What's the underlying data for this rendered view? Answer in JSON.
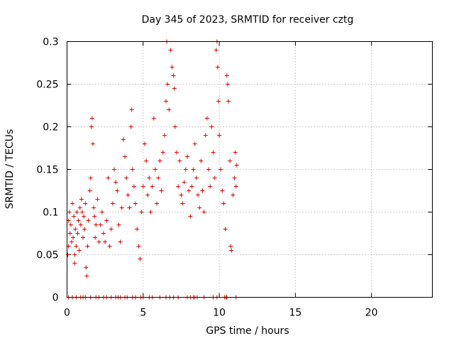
{
  "chart_data": {
    "type": "scatter",
    "title": "Day 345 of 2023, SRMTID for receiver cztg",
    "xlabel": "GPS time / hours",
    "ylabel": "SRMTID / TECUs",
    "xlim": [
      0,
      24
    ],
    "ylim": [
      0,
      0.3
    ],
    "grid": true,
    "marker": "+",
    "series_color": "#e00000",
    "x_ticks": [
      {
        "value": 0,
        "label": "0"
      },
      {
        "value": 5,
        "label": "5"
      },
      {
        "value": 10,
        "label": "10"
      },
      {
        "value": 15,
        "label": "15"
      },
      {
        "value": 20,
        "label": "20"
      }
    ],
    "y_ticks": [
      {
        "value": 0,
        "label": "0"
      },
      {
        "value": 0.05,
        "label": "0.05"
      },
      {
        "value": 0.1,
        "label": "0.1"
      },
      {
        "value": 0.15,
        "label": "0.15"
      },
      {
        "value": 0.2,
        "label": "0.2"
      },
      {
        "value": 0.25,
        "label": "0.25"
      },
      {
        "value": 0.3,
        "label": "0.3"
      }
    ],
    "series": [
      {
        "name": "SRMTID",
        "points": [
          [
            0.05,
            0.05
          ],
          [
            0.1,
            0.09
          ],
          [
            0.1,
            0.06
          ],
          [
            0.15,
            0.1
          ],
          [
            0.2,
            0.075
          ],
          [
            0.25,
            0.085
          ],
          [
            0.3,
            0.065
          ],
          [
            0.35,
            0.11
          ],
          [
            0.4,
            0.07
          ],
          [
            0.45,
            0.095
          ],
          [
            0.5,
            0.05
          ],
          [
            0.5,
            0.04
          ],
          [
            0.55,
            0.08
          ],
          [
            0.6,
            0.06
          ],
          [
            0.65,
            0.1
          ],
          [
            0.7,
            0.075
          ],
          [
            0.75,
            0.09
          ],
          [
            0.8,
            0.055
          ],
          [
            0.85,
            0.105
          ],
          [
            0.9,
            0.085
          ],
          [
            0.95,
            0.115
          ],
          [
            1.0,
            0.1
          ],
          [
            1.05,
            0.07
          ],
          [
            1.1,
            0.095
          ],
          [
            1.15,
            0.08
          ],
          [
            1.2,
            0.11
          ],
          [
            1.25,
            0.035
          ],
          [
            1.3,
            0.025
          ],
          [
            1.35,
            0.06
          ],
          [
            1.4,
            0.09
          ],
          [
            1.5,
            0.125
          ],
          [
            1.55,
            0.14
          ],
          [
            1.6,
            0.2
          ],
          [
            1.65,
            0.21
          ],
          [
            1.7,
            0.18
          ],
          [
            1.75,
            0.105
          ],
          [
            1.8,
            0.095
          ],
          [
            1.85,
            0.07
          ],
          [
            1.9,
            0.085
          ],
          [
            2.0,
            0.115
          ],
          [
            2.1,
            0.065
          ],
          [
            2.2,
            0.085
          ],
          [
            2.3,
            0.1
          ],
          [
            2.4,
            0.075
          ],
          [
            2.5,
            0.065
          ],
          [
            2.6,
            0.09
          ],
          [
            2.7,
            0.14
          ],
          [
            2.8,
            0.06
          ],
          [
            2.9,
            0.08
          ],
          [
            3.0,
            0.11
          ],
          [
            3.1,
            0.15
          ],
          [
            3.2,
            0.135
          ],
          [
            3.3,
            0.125
          ],
          [
            3.4,
            0.085
          ],
          [
            3.5,
            0.065
          ],
          [
            3.6,
            0.105
          ],
          [
            3.7,
            0.185
          ],
          [
            3.8,
            0.165
          ],
          [
            3.9,
            0.14
          ],
          [
            4.0,
            0.12
          ],
          [
            4.1,
            0.105
          ],
          [
            4.2,
            0.2
          ],
          [
            4.25,
            0.22
          ],
          [
            4.3,
            0.15
          ],
          [
            4.4,
            0.13
          ],
          [
            4.5,
            0.11
          ],
          [
            4.6,
            0.08
          ],
          [
            4.7,
            0.06
          ],
          [
            4.8,
            0.045
          ],
          [
            4.9,
            0.1
          ],
          [
            5.0,
            0.13
          ],
          [
            5.1,
            0.18
          ],
          [
            5.2,
            0.16
          ],
          [
            5.3,
            0.12
          ],
          [
            5.4,
            0.14
          ],
          [
            5.5,
            0.1
          ],
          [
            5.6,
            0.13
          ],
          [
            5.7,
            0.21
          ],
          [
            5.8,
            0.15
          ],
          [
            5.9,
            0.11
          ],
          [
            6.0,
            0.14
          ],
          [
            6.1,
            0.16
          ],
          [
            6.2,
            0.125
          ],
          [
            6.3,
            0.17
          ],
          [
            6.4,
            0.19
          ],
          [
            6.5,
            0.23
          ],
          [
            6.55,
            0.3
          ],
          [
            6.6,
            0.25
          ],
          [
            6.7,
            0.22
          ],
          [
            6.8,
            0.29
          ],
          [
            6.9,
            0.27
          ],
          [
            7.0,
            0.26
          ],
          [
            7.05,
            0.245
          ],
          [
            7.1,
            0.2
          ],
          [
            7.2,
            0.17
          ],
          [
            7.3,
            0.13
          ],
          [
            7.4,
            0.16
          ],
          [
            7.5,
            0.12
          ],
          [
            7.6,
            0.11
          ],
          [
            7.7,
            0.135
          ],
          [
            7.8,
            0.15
          ],
          [
            7.9,
            0.165
          ],
          [
            8.0,
            0.125
          ],
          [
            8.1,
            0.095
          ],
          [
            8.2,
            0.13
          ],
          [
            8.3,
            0.15
          ],
          [
            8.4,
            0.18
          ],
          [
            8.5,
            0.14
          ],
          [
            8.6,
            0.12
          ],
          [
            8.7,
            0.105
          ],
          [
            8.8,
            0.16
          ],
          [
            8.9,
            0.125
          ],
          [
            9.0,
            0.1
          ],
          [
            9.1,
            0.19
          ],
          [
            9.2,
            0.21
          ],
          [
            9.3,
            0.15
          ],
          [
            9.4,
            0.13
          ],
          [
            9.5,
            0.2
          ],
          [
            9.6,
            0.17
          ],
          [
            9.7,
            0.14
          ],
          [
            9.8,
            0.29
          ],
          [
            9.85,
            0.3
          ],
          [
            9.9,
            0.27
          ],
          [
            9.95,
            0.23
          ],
          [
            10.0,
            0.19
          ],
          [
            10.1,
            0.15
          ],
          [
            10.2,
            0.125
          ],
          [
            10.3,
            0.11
          ],
          [
            10.4,
            0.08
          ],
          [
            10.5,
            0.26
          ],
          [
            10.55,
            0.25
          ],
          [
            10.6,
            0.23
          ],
          [
            10.7,
            0.16
          ],
          [
            10.75,
            0.06
          ],
          [
            10.8,
            0.055
          ],
          [
            10.9,
            0.12
          ],
          [
            11.0,
            0.14
          ],
          [
            11.05,
            0.17
          ],
          [
            11.1,
            0.13
          ],
          [
            11.15,
            0.155
          ]
        ]
      }
    ],
    "zero_points_x": [
      0.1,
      0.35,
      0.6,
      0.9,
      1.05,
      1.2,
      1.55,
      1.9,
      2.1,
      2.4,
      2.6,
      2.9,
      3.2,
      3.35,
      3.5,
      3.8,
      3.95,
      4.3,
      4.5,
      4.85,
      5.0,
      5.4,
      5.6,
      6.1,
      6.5,
      6.75,
      7.0,
      7.3,
      7.9,
      8.1,
      8.3,
      8.4,
      8.55,
      9.0,
      9.6,
      9.85,
      10.35,
      10.45,
      10.5,
      11.1
    ]
  }
}
